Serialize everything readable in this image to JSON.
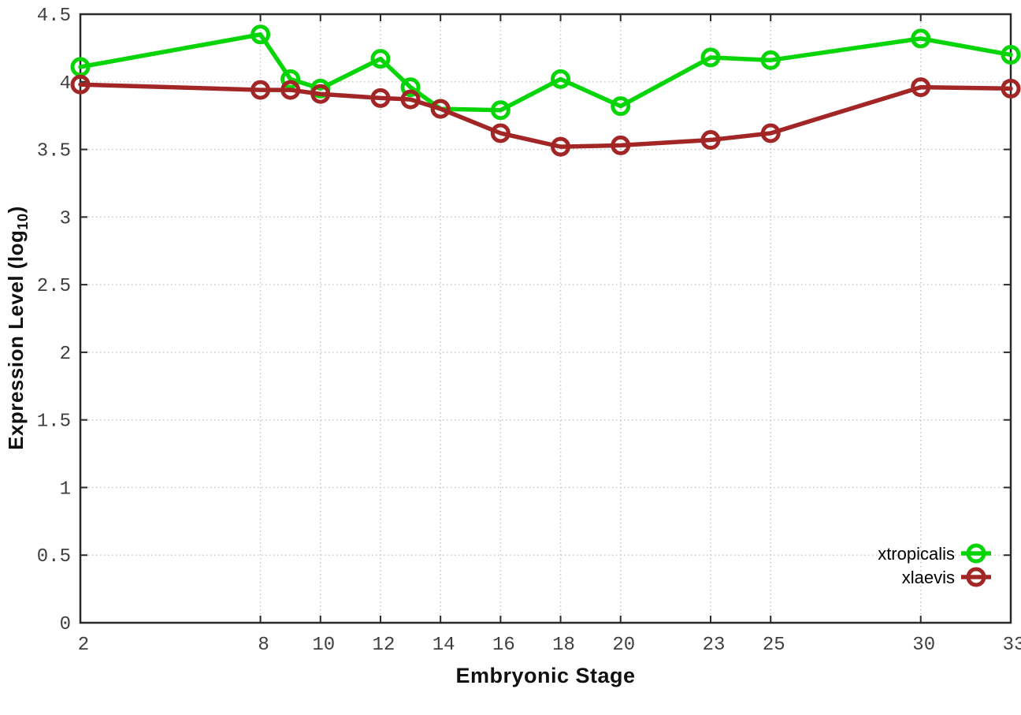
{
  "chart_data": {
    "type": "line",
    "title": "",
    "xlabel": "Embryonic Stage",
    "ylabel": {
      "prefix": "Expression Level (log",
      "sub": "10",
      "suffix": ")"
    },
    "xlim": [
      2,
      33
    ],
    "ylim": [
      0,
      4.5
    ],
    "grid": "dotted",
    "legend_position": "bottom-right",
    "x_tick_values": [
      2,
      8,
      10,
      12,
      14,
      16,
      18,
      20,
      23,
      25,
      30,
      33
    ],
    "x_tick_labels": [
      "2",
      "8",
      "10",
      "12",
      "14",
      "16",
      "18",
      "20",
      "23",
      "25",
      "30",
      "33"
    ],
    "y_tick_values": [
      0,
      0.5,
      1,
      1.5,
      2,
      2.5,
      3,
      3.5,
      4,
      4.5
    ],
    "y_tick_labels": [
      "0",
      "0.5",
      "1",
      "1.5",
      "2",
      "2.5",
      "3",
      "3.5",
      "4",
      "4.5"
    ],
    "x": [
      2,
      8,
      9,
      10,
      12,
      13,
      14,
      16,
      18,
      20,
      23,
      25,
      30,
      33
    ],
    "series": [
      {
        "name": "xtropicalis",
        "color": "#07d507",
        "values": [
          4.11,
          4.35,
          4.02,
          3.95,
          4.17,
          3.96,
          3.8,
          3.79,
          4.02,
          3.82,
          4.18,
          4.16,
          4.32,
          4.2
        ]
      },
      {
        "name": "xlaevis",
        "color": "#a32626",
        "values": [
          3.98,
          3.94,
          3.94,
          3.91,
          3.88,
          3.87,
          3.8,
          3.62,
          3.52,
          3.53,
          3.57,
          3.62,
          3.96,
          3.95
        ]
      }
    ],
    "colors": {
      "grid": "#c4c4c4",
      "border": "#2a2a2a",
      "tick_text": "#3f3f3f",
      "legend_text": "#000000"
    }
  }
}
